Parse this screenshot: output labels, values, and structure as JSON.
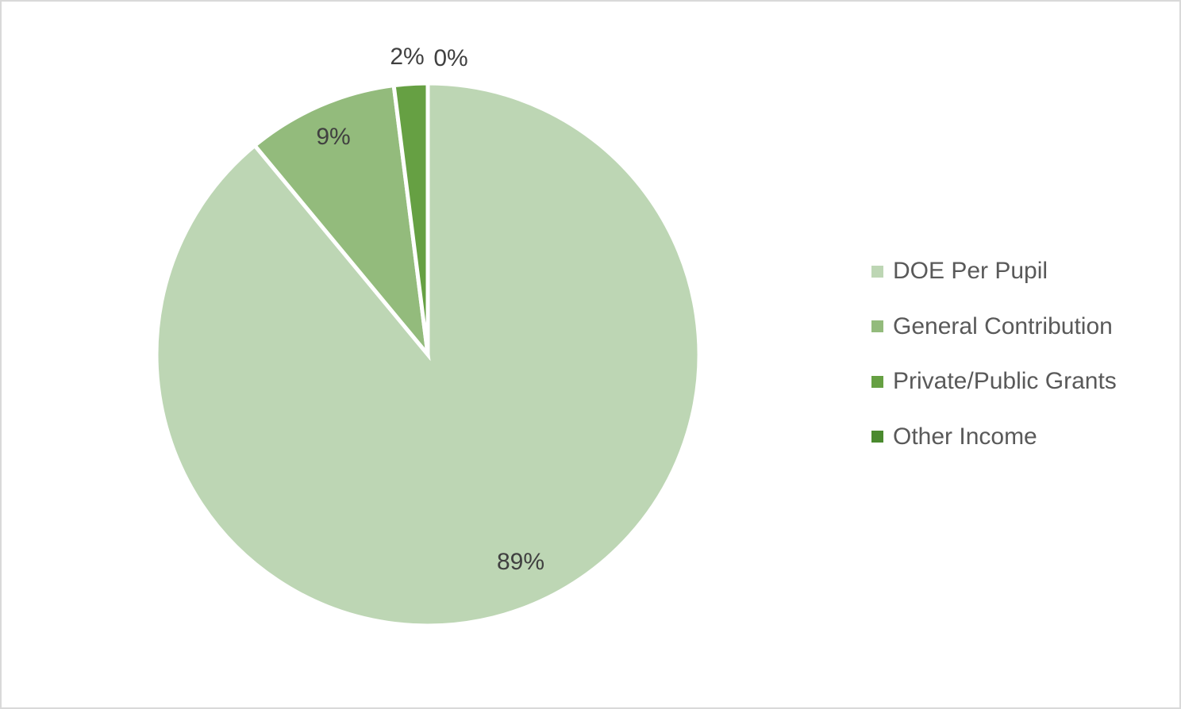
{
  "chart_data": {
    "type": "pie",
    "title": "",
    "series": [
      {
        "categories": [
          "DOE Per Pupil",
          "General Contribution",
          "Private/Public Grants",
          "Other Income"
        ],
        "values": [
          89,
          9,
          2,
          0
        ],
        "labels": [
          "89%",
          "9%",
          "2%",
          "0%"
        ],
        "colors": [
          "#bdd6b4",
          "#93bb7c",
          "#66a043",
          "#4a8a2e"
        ]
      }
    ],
    "legend_position": "right"
  },
  "legend": {
    "items": [
      {
        "label": "DOE Per Pupil",
        "color": "#bdd6b4"
      },
      {
        "label": "General Contribution",
        "color": "#93bb7c"
      },
      {
        "label": "Private/Public Grants",
        "color": "#66a043"
      },
      {
        "label": "Other Income",
        "color": "#4a8a2e"
      }
    ]
  }
}
